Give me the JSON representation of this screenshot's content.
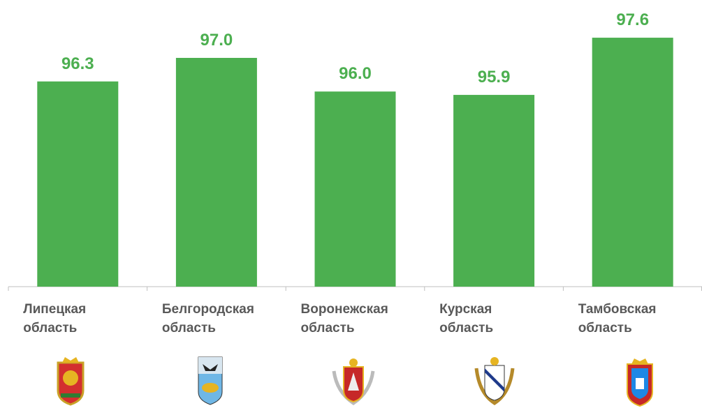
{
  "chart_data": {
    "type": "bar",
    "categories": [
      "Липецкая\nобласть",
      "Белгородская\nобласть",
      "Воронежская\nобласть",
      "Курская\nобласть",
      "Тамбовская\nобласть"
    ],
    "values": [
      96.3,
      97.0,
      96.0,
      95.9,
      97.6
    ],
    "value_labels": [
      "96.3",
      "97.0",
      "96.0",
      "95.9",
      "97.6"
    ],
    "color": "#4caf50",
    "ylim": [
      90.2,
      98.7
    ]
  }
}
